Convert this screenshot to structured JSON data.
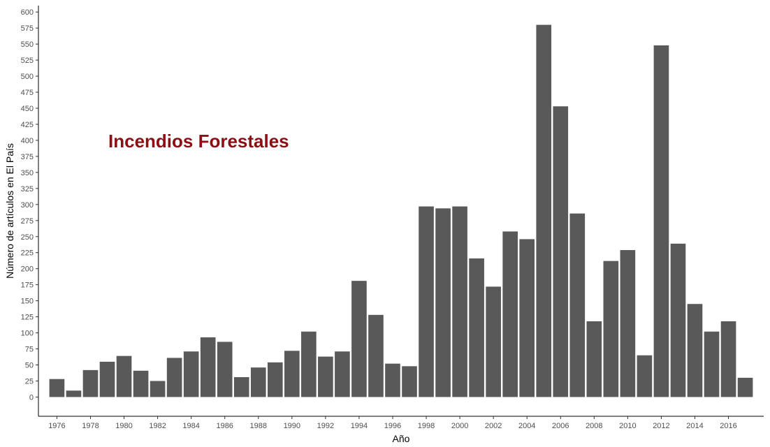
{
  "chart_data": {
    "type": "bar",
    "title": "",
    "xlabel": "Año",
    "ylabel": "Número de artículos en El País",
    "annotation": "Incendios Forestales",
    "annotation_color": "#8b0f14",
    "bar_color": "#595959",
    "background": "#ffffff",
    "grid": false,
    "legend": "none",
    "ylim": [
      -30,
      610
    ],
    "xlim": [
      1974.9,
      1018.1
    ],
    "categories": [
      1976,
      1977,
      1978,
      1979,
      1980,
      1981,
      1982,
      1983,
      1984,
      1985,
      1986,
      1987,
      1988,
      1989,
      1990,
      1991,
      1992,
      1993,
      1994,
      1995,
      1996,
      1997,
      1998,
      1999,
      2000,
      2001,
      2002,
      2003,
      2004,
      2005,
      2006,
      2007,
      2008,
      2009,
      2010,
      2011,
      2012,
      2013,
      2014,
      2015,
      2016,
      2017
    ],
    "values": [
      28,
      10,
      42,
      55,
      64,
      41,
      25,
      61,
      71,
      93,
      86,
      31,
      46,
      54,
      72,
      102,
      63,
      71,
      181,
      128,
      52,
      48,
      297,
      294,
      297,
      216,
      172,
      258,
      246,
      580,
      453,
      286,
      118,
      212,
      229,
      65,
      548,
      239,
      145,
      102,
      118,
      30
    ],
    "x_ticks": [
      1976,
      1978,
      1980,
      1982,
      1984,
      1986,
      1988,
      1990,
      1992,
      1994,
      1996,
      1998,
      2000,
      2002,
      2004,
      2006,
      2008,
      2010,
      2012,
      2014,
      2016
    ],
    "y_ticks": [
      0,
      25,
      50,
      75,
      100,
      125,
      150,
      175,
      200,
      225,
      250,
      275,
      300,
      325,
      350,
      375,
      400,
      425,
      450,
      475,
      500,
      525,
      550,
      575,
      600
    ]
  }
}
